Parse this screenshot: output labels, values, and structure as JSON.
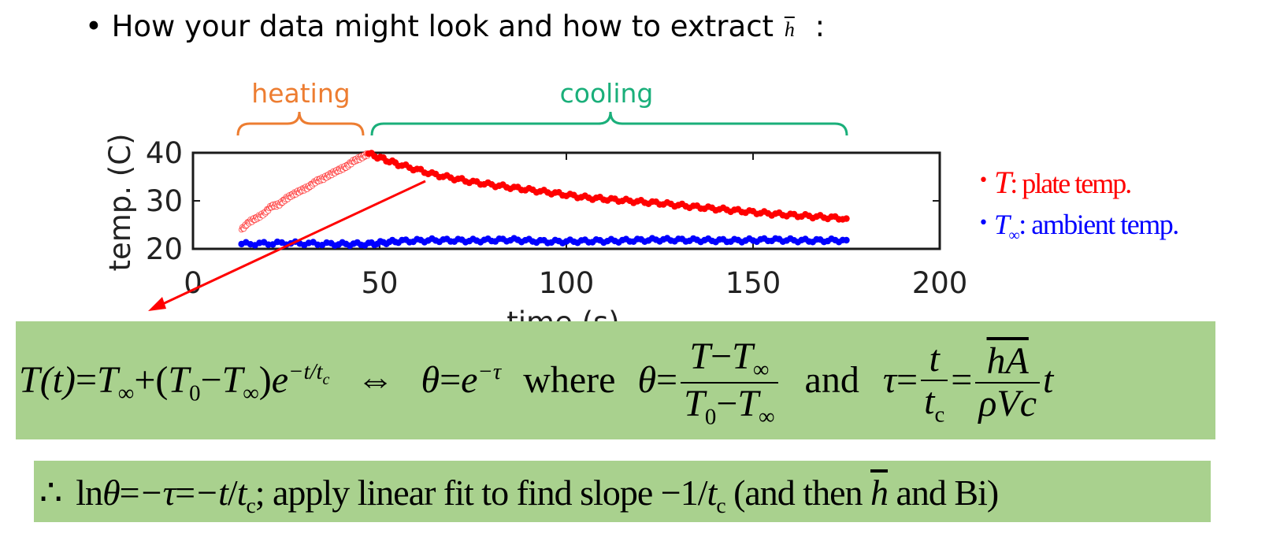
{
  "bullet": {
    "marker": "•",
    "text": "How your data might look and how to extract",
    "symbol": "h",
    "suffix": ":"
  },
  "phases": {
    "heating": "heating",
    "cooling": "cooling",
    "heating_color": "#ed7d31",
    "cooling_color": "#1aaf7a"
  },
  "legend": {
    "plate_symbol": "T",
    "plate_label": ": plate temp.",
    "ambient_symbol": "T",
    "ambient_sub": "∞",
    "ambient_label": ": ambient temp."
  },
  "chart_data": {
    "type": "scatter",
    "xlabel": "time (s)",
    "ylabel": "temp. (C)",
    "xlim": [
      0,
      200
    ],
    "ylim": [
      20,
      40
    ],
    "xticks": [
      0,
      50,
      100,
      150,
      200
    ],
    "yticks": [
      20,
      30,
      40
    ],
    "series": [
      {
        "color": "#ff0000",
        "style": "hollow-markers",
        "x": [
          13,
          15,
          17,
          19,
          21,
          23,
          25,
          27,
          29,
          31,
          33,
          35,
          37,
          39,
          41,
          43,
          45,
          47
        ],
        "y": [
          24.0,
          25.6,
          26.4,
          27.3,
          28.9,
          29.2,
          30.5,
          31.4,
          32.2,
          32.9,
          34.1,
          34.7,
          35.6,
          36.4,
          37.1,
          38.3,
          39.0,
          39.8
        ]
      },
      {
        "color": "#ff0000",
        "style": "filled-markers",
        "x": [
          47,
          55,
          65,
          75,
          85,
          95,
          105,
          115,
          125,
          135,
          145,
          155,
          165,
          175
        ],
        "y": [
          39.8,
          37.6,
          35.4,
          33.9,
          32.8,
          31.8,
          30.7,
          30.1,
          29.5,
          28.7,
          28.0,
          27.3,
          26.8,
          26.3
        ]
      },
      {
        "color": "#0000ff",
        "style": "filled-markers",
        "x": [
          13,
          25,
          37,
          47,
          55,
          65,
          75,
          85,
          95,
          105,
          115,
          125,
          135,
          145,
          155,
          165,
          175
        ],
        "y": [
          21.0,
          21.2,
          21.0,
          21.0,
          21.6,
          21.8,
          21.7,
          21.9,
          21.5,
          21.6,
          21.7,
          21.9,
          21.8,
          21.7,
          21.9,
          21.7,
          21.8
        ]
      }
    ]
  },
  "equation1": {
    "lhs": "T(t)",
    "eq": "=",
    "tinf": "T",
    "inf": "∞",
    "plus": "+",
    "open": "(",
    "t0": "T",
    "zero": "0",
    "minus": "−",
    "close": ")",
    "e": "e",
    "exp": "−t/t",
    "c": "c",
    "iff": "⇔",
    "theta": "θ",
    "tau_exp": "−τ",
    "where": "where",
    "and": "and",
    "tau": "τ",
    "t": "t",
    "hA": "hA",
    "rhoVc": "ρVc"
  },
  "equation2": {
    "therefore": "∴",
    "ln": "ln",
    "theta": "θ",
    "eq": "=",
    "neg_tau": "−τ",
    "neg_t": "−t",
    "slash": "/",
    "t": "t",
    "c": "c",
    "semicolon": ";",
    "text1": "apply linear fit to find slope",
    "slope": "−1",
    "text2": "(and then",
    "h": "h",
    "text3": "and Bi)"
  }
}
